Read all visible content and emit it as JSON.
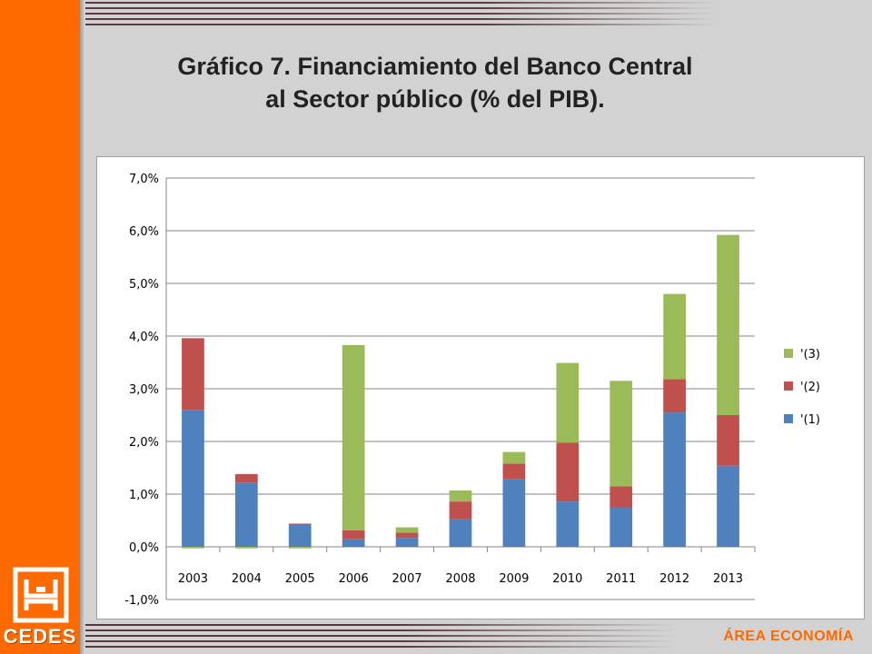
{
  "header": {
    "title_line1": "Gráfico 7. Financiamiento del Banco Central",
    "title_line2": "al Sector público (% del PIB)."
  },
  "branding": {
    "logo_text": "CEDES",
    "area_label": "ÁREA ECONOMÍA",
    "accent_color": "#ff6a00"
  },
  "chart_data": {
    "type": "bar",
    "stacked": true,
    "categories": [
      "2003",
      "2004",
      "2005",
      "2006",
      "2007",
      "2008",
      "2009",
      "2010",
      "2011",
      "2012",
      "2013"
    ],
    "series": [
      {
        "name": "'(1)",
        "color": "#4f81bd",
        "values": [
          2.6,
          1.22,
          0.44,
          0.15,
          0.17,
          0.52,
          1.28,
          0.86,
          0.75,
          2.55,
          1.54
        ]
      },
      {
        "name": "'(2)",
        "color": "#c0504d",
        "values": [
          1.36,
          0.16,
          0.0,
          0.16,
          0.1,
          0.34,
          0.3,
          1.12,
          0.4,
          0.63,
          0.96
        ]
      },
      {
        "name": "'(3)",
        "color": "#9bbb59",
        "values": [
          -0.03,
          -0.03,
          -0.03,
          3.52,
          0.1,
          0.21,
          0.22,
          1.51,
          2.0,
          1.62,
          3.42
        ]
      }
    ],
    "ylim": [
      -1.0,
      7.0
    ],
    "yticks": [
      "-1,0%",
      "0,0%",
      "1,0%",
      "2,0%",
      "3,0%",
      "4,0%",
      "5,0%",
      "6,0%",
      "7,0%"
    ],
    "grid": true,
    "legend": "right",
    "legend_order": [
      "'(3)",
      "'(2)",
      "'(1)"
    ]
  }
}
